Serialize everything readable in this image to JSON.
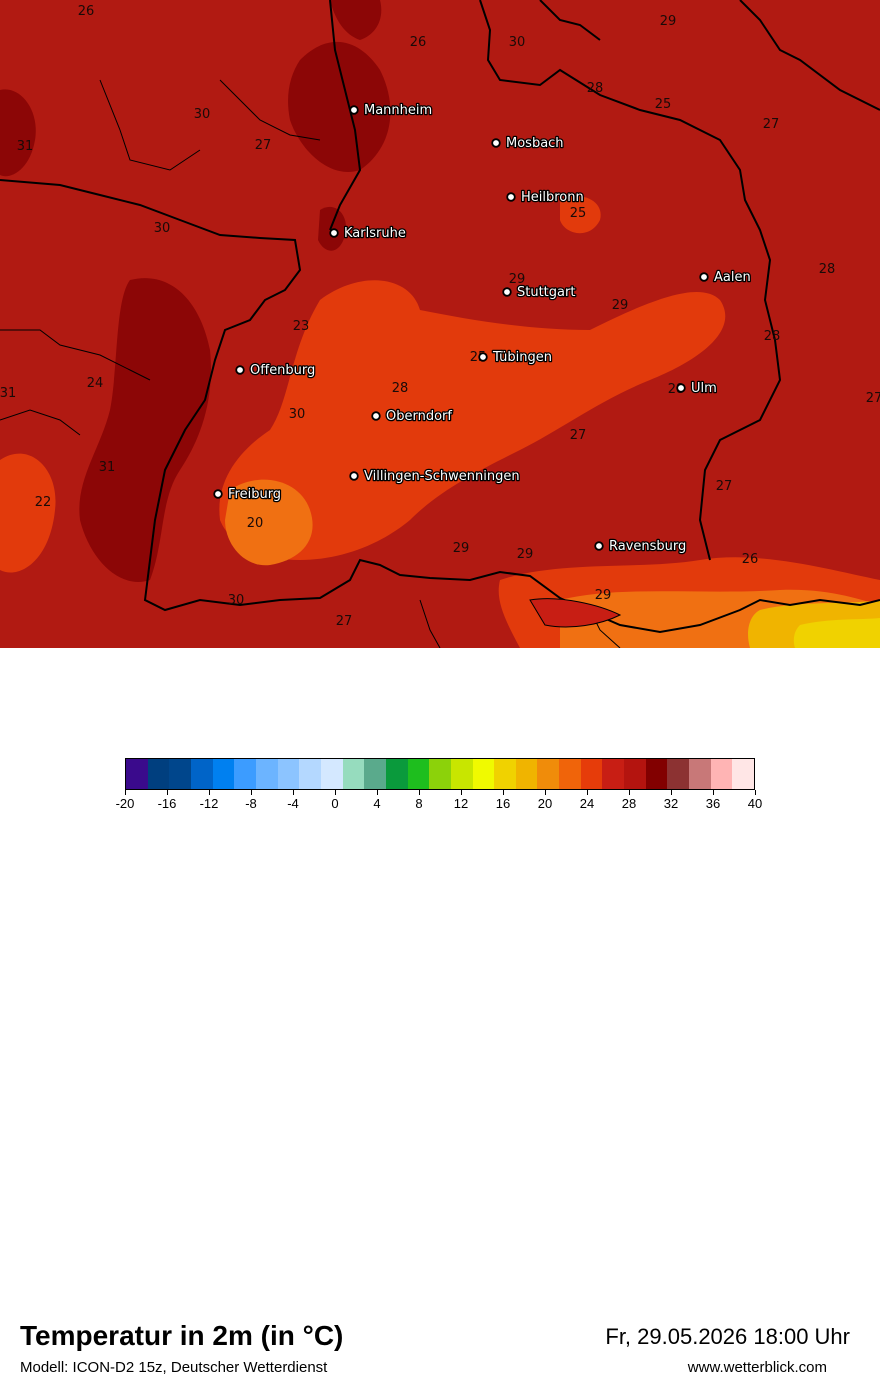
{
  "map": {
    "cities": [
      {
        "name": "Mannheim"
      },
      {
        "name": "Mosbach"
      },
      {
        "name": "Heilbronn"
      },
      {
        "name": "Karlsruhe"
      },
      {
        "name": "Aalen"
      },
      {
        "name": "Stuttgart"
      },
      {
        "name": "Offenburg"
      },
      {
        "name": "Tübingen"
      },
      {
        "name": "Ulm"
      },
      {
        "name": "Oberndorf"
      },
      {
        "name": "Villingen-Schwenningen"
      },
      {
        "name": "Freiburg"
      },
      {
        "name": "Ravensburg"
      }
    ],
    "isotherm_labels": [
      "26",
      "26",
      "30",
      "29",
      "30",
      "27",
      "28",
      "25",
      "31",
      "27",
      "30",
      "25",
      "29",
      "28",
      "29",
      "23",
      "28",
      "25",
      "24",
      "31",
      "28",
      "28",
      "30",
      "27",
      "27",
      "31",
      "27",
      "22",
      "20",
      "29",
      "29",
      "26",
      "30",
      "27",
      "29"
    ]
  },
  "title": "Temperatur in 2m (in °C)",
  "model_line": "Modell: ICON-D2 15z, Deutscher Wetterdienst",
  "datetime": "Fr, 29.05.2026 18:00 Uhr",
  "website": "www.wetterblick.com",
  "legend": {
    "colors": [
      "#3a0a8c",
      "#003f7f",
      "#00468c",
      "#0064c8",
      "#0080f0",
      "#3c9cff",
      "#6cb4ff",
      "#8cc4ff",
      "#b4d8ff",
      "#d4e8ff",
      "#96dcbe",
      "#5aaa8c",
      "#0a9a3c",
      "#1ebe1e",
      "#8cd20a",
      "#c8e600",
      "#f0fa00",
      "#f0d200",
      "#f0b400",
      "#f08c0a",
      "#f0640a",
      "#e63c0a",
      "#c81e14",
      "#b4140f",
      "#820000",
      "#8c3232",
      "#c87878",
      "#ffb4b4",
      "#ffe6e6"
    ],
    "ticks": [
      "-20",
      "-16",
      "-12",
      "-8",
      "-4",
      "0",
      "4",
      "8",
      "12",
      "16",
      "20",
      "24",
      "28",
      "32",
      "36",
      "40"
    ]
  }
}
